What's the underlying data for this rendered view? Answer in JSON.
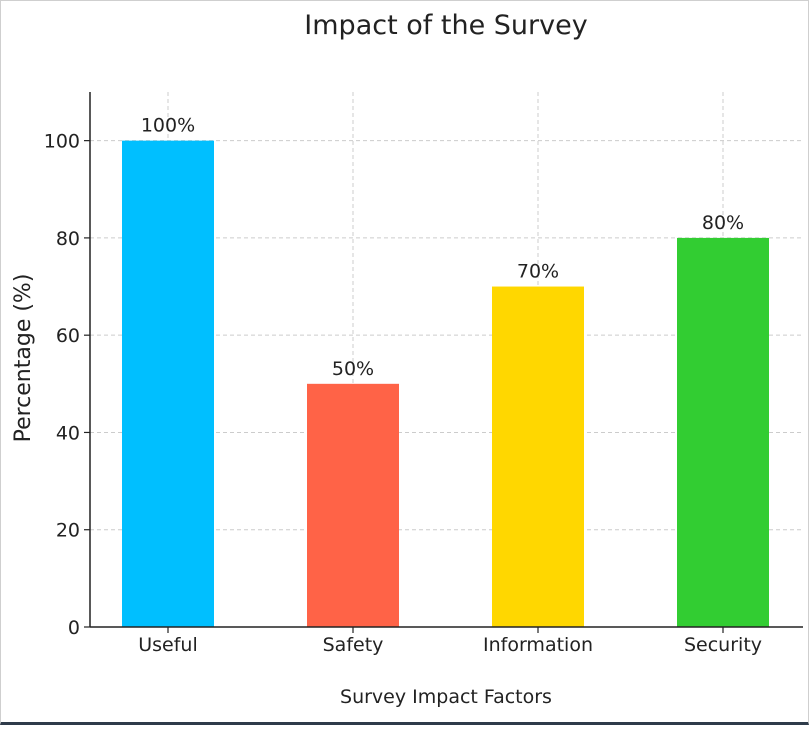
{
  "chart_data": {
    "type": "bar",
    "title": "Impact of the Survey",
    "xlabel": "Survey Impact Factors",
    "ylabel": "Percentage (%)",
    "categories": [
      "Useful",
      "Safety",
      "Information",
      "Security"
    ],
    "values": [
      100,
      50,
      70,
      80
    ],
    "data_labels": [
      "100%",
      "50%",
      "70%",
      "80%"
    ],
    "colors": [
      "#00BFFF",
      "#FF6347",
      "#FFD700",
      "#32CD32"
    ],
    "ylim": [
      0,
      110
    ],
    "yticks": [
      0,
      20,
      40,
      60,
      80,
      100
    ],
    "ytick_labels": [
      "0",
      "20",
      "40",
      "60",
      "80",
      "100"
    ],
    "grid": true,
    "legend": "none"
  }
}
